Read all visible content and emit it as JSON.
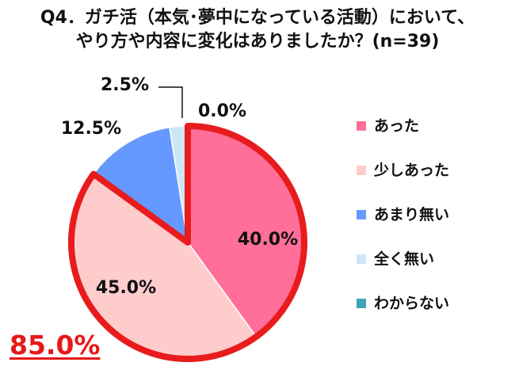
{
  "title": {
    "line1": "Q4．ガチ活（本気･夢中になっている活動）において、",
    "line2": "やり方や内容に変化はありましたか？(n=39)"
  },
  "total_label": "85.0%",
  "colors": {
    "highlight_outline": "#e81c1c",
    "leader_line": "#111111"
  },
  "chart_data": {
    "type": "pie",
    "start_angle": "12 o'clock",
    "direction": "clockwise",
    "slices": [
      {
        "label": "あった",
        "value": 40.0,
        "value_label": "40.0%",
        "color": "#ff6f99"
      },
      {
        "label": "少しあった",
        "value": 45.0,
        "value_label": "45.0%",
        "color": "#ffcccc"
      },
      {
        "label": "あまり無い",
        "value": 12.5,
        "value_label": "12.5%",
        "color": "#6699ff"
      },
      {
        "label": "全く無い",
        "value": 2.5,
        "value_label": "2.5%",
        "color": "#cce6f5"
      },
      {
        "label": "わからない",
        "value": 0.0,
        "value_label": "0.0%",
        "color": "#3ca4b7"
      }
    ],
    "highlighted_group": [
      "あった",
      "少しあった"
    ],
    "highlighted_total": 85.0,
    "legend_position": "right"
  }
}
